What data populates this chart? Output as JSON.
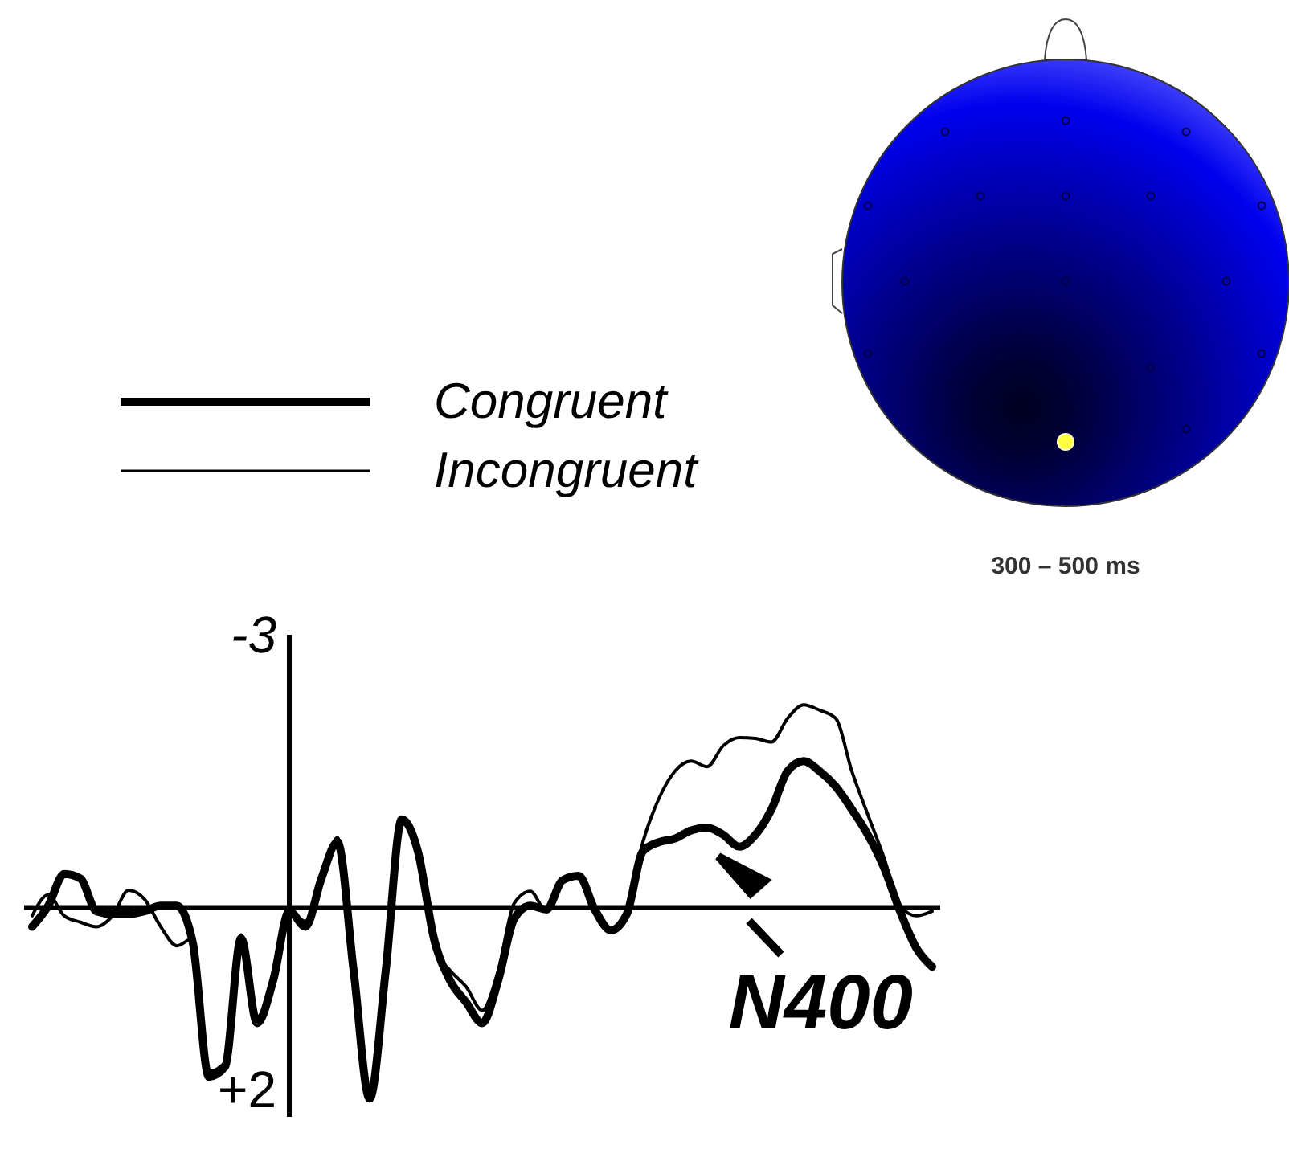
{
  "chart_data": {
    "type": "line",
    "categories": [
      null,
      null,
      null,
      null,
      null,
      null,
      null,
      null,
      null,
      null,
      null,
      null,
      null,
      null,
      null,
      null,
      null,
      null,
      null,
      null,
      null,
      null,
      null,
      null,
      null,
      null,
      null,
      null,
      null,
      null,
      null,
      null,
      null,
      null,
      null,
      null,
      null,
      null,
      null,
      null,
      null,
      null,
      null,
      null,
      null,
      null,
      null,
      null,
      null,
      null,
      null,
      null,
      null,
      null,
      null,
      null,
      null
    ],
    "series": [
      {
        "name": "Congruent",
        "color": "#000000",
        "values": [
          0.21,
          -0.02,
          -0.37,
          -0.32,
          0.04,
          0.07,
          0.07,
          0.04,
          -0.02,
          -0.02,
          0.39,
          1.86,
          1.75,
          0.34,
          1.27,
          0.8,
          0.04,
          0.21,
          -0.32,
          -0.72,
          0.69,
          2.1,
          0.69,
          -0.97,
          -0.62,
          0.34,
          0.8,
          1.04,
          1.27,
          0.8,
          0.12,
          -0.02,
          0.02,
          -0.3,
          -0.35,
          0.02,
          0.25,
          0.07,
          -0.62,
          -0.72,
          -0.76,
          -0.85,
          -0.88,
          -0.8,
          -0.67,
          -0.8,
          -1.08,
          -1.5,
          -1.61,
          -1.5,
          -1.33,
          -1.08,
          -0.8,
          -0.44,
          0.04,
          0.44,
          0.65
        ]
      },
      {
        "name": "Incongruent",
        "color": "#000000",
        "values": [
          0.09,
          -0.14,
          0.09,
          0.16,
          0.21,
          0.09,
          -0.19,
          -0.09,
          0.21,
          0.42,
          0.34,
          1.8,
          1.7,
          0.3,
          1.2,
          0.8,
          0.04,
          0.15,
          -0.32,
          -0.77,
          0.69,
          2.0,
          0.69,
          -0.97,
          -0.62,
          0.44,
          0.69,
          0.87,
          1.13,
          0.69,
          -0.05,
          -0.18,
          0.04,
          -0.3,
          -0.35,
          0.02,
          0.25,
          0.07,
          -0.72,
          -1.2,
          -1.5,
          -1.61,
          -1.55,
          -1.78,
          -1.87,
          -1.86,
          -1.82,
          -2.08,
          -2.23,
          -2.17,
          -2.08,
          -1.5,
          -1.02,
          -0.55,
          -0.02,
          0.09,
          0.04
        ]
      }
    ],
    "ylim": [
      2.3,
      -3
    ],
    "yticks": [
      -3,
      {
        "value": 2,
        "label": "+2"
      }
    ],
    "legend": "top left",
    "annotations": [
      "N400",
      "300 – 500 ms"
    ]
  }
}
